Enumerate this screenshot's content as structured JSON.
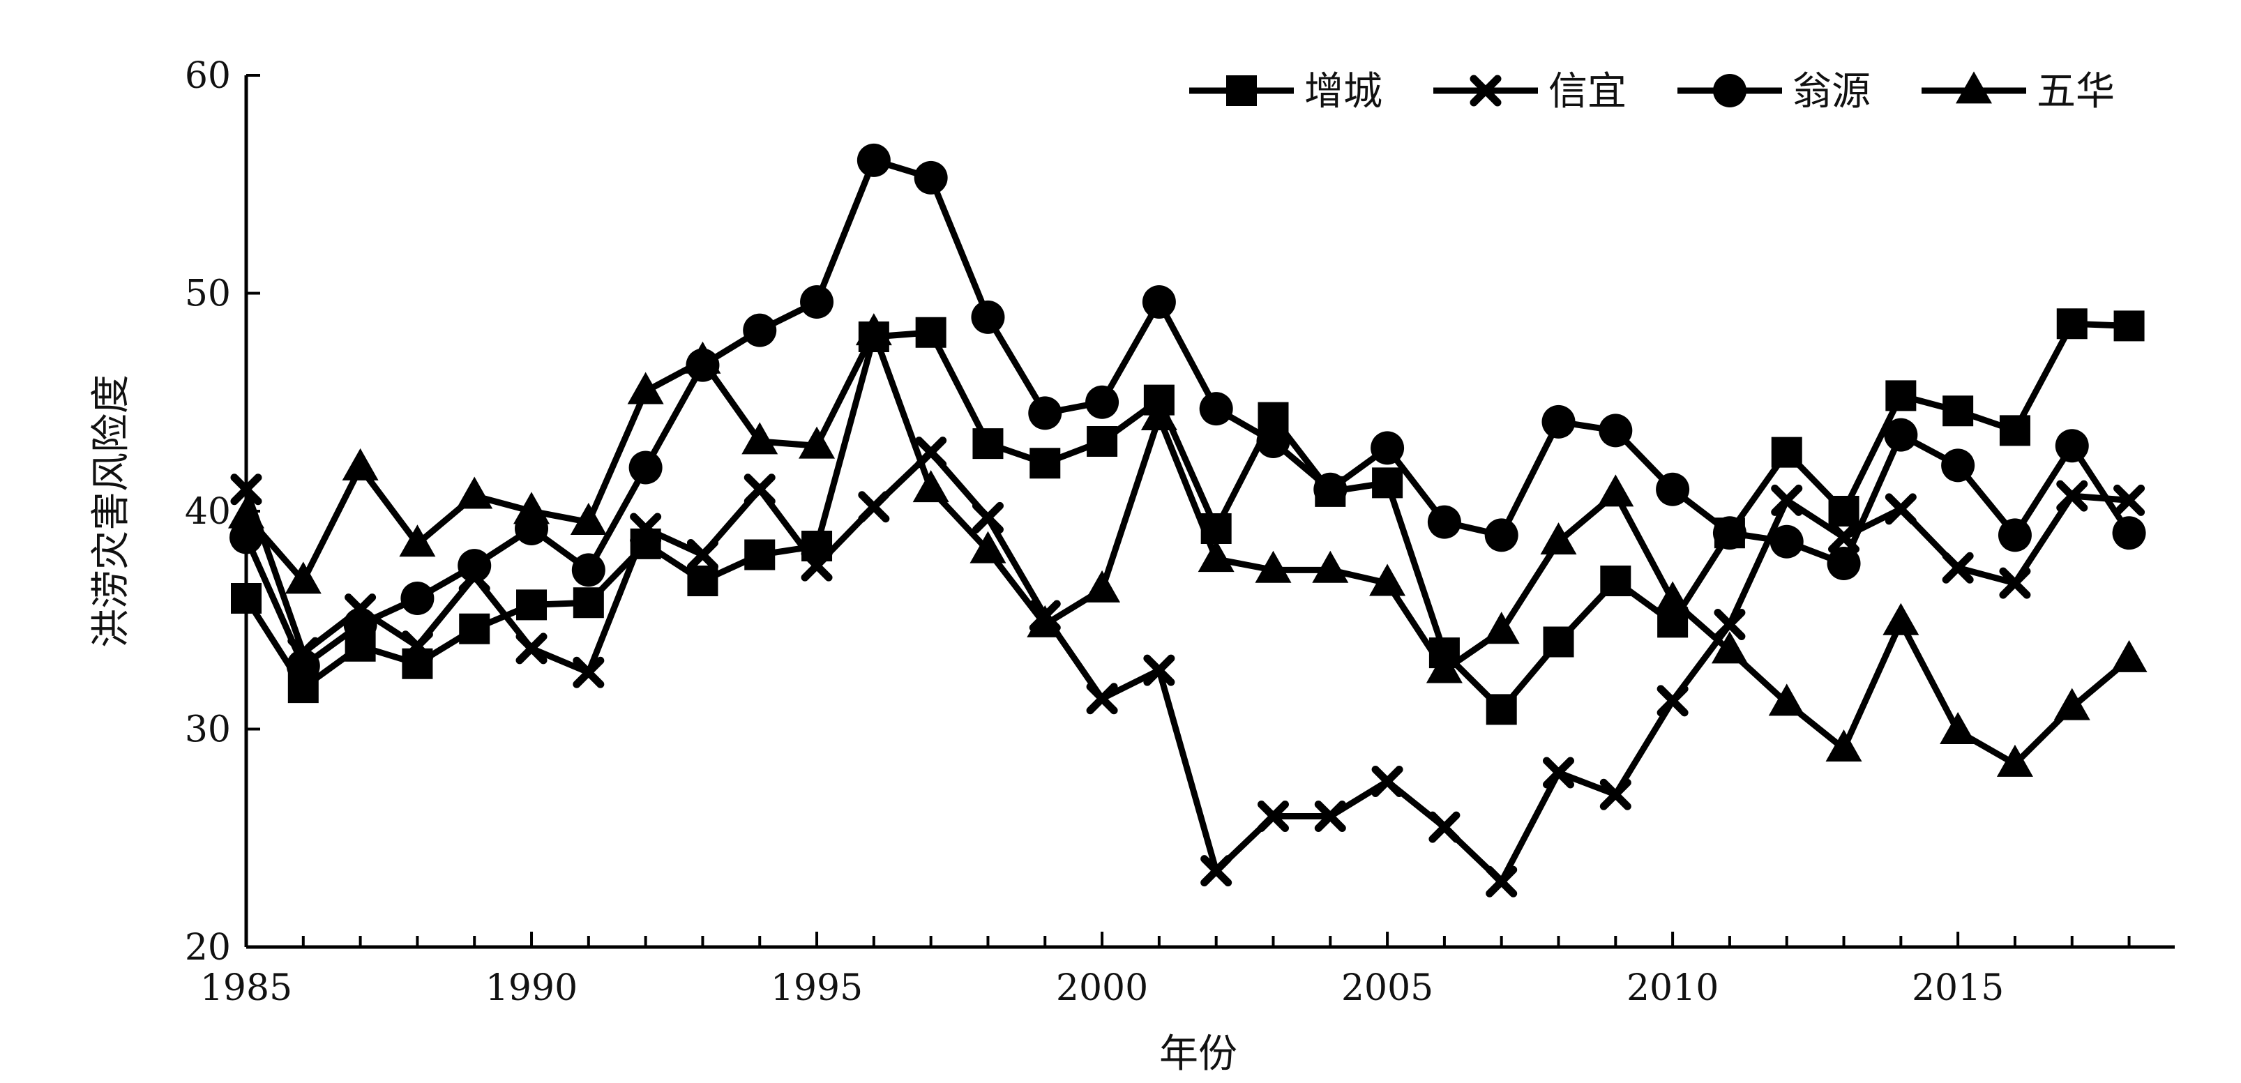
{
  "chart_data": {
    "type": "line",
    "title": "",
    "xlabel": "年份",
    "ylabel": "洪涝灾害风险度",
    "xlim": [
      1985,
      2018.8
    ],
    "ylim": [
      20,
      60
    ],
    "x_ticks": [
      1985,
      1990,
      1995,
      2000,
      2005,
      2010,
      2015
    ],
    "y_ticks": [
      20,
      30,
      40,
      50,
      60
    ],
    "grid": false,
    "legend_position": "top-right",
    "x": [
      1985,
      1986,
      1987,
      1988,
      1989,
      1990,
      1991,
      1992,
      1993,
      1994,
      1995,
      1996,
      1997,
      1998,
      1999,
      2000,
      2001,
      2002,
      2003,
      2004,
      2005,
      2006,
      2007,
      2008,
      2009,
      2010,
      2011,
      2012,
      2013,
      2014,
      2015,
      2016,
      2017,
      2018
    ],
    "series": [
      {
        "name": "增城",
        "marker": "square",
        "values": [
          36.0,
          31.9,
          33.8,
          33.0,
          34.6,
          35.7,
          35.8,
          38.5,
          36.8,
          38.0,
          38.4,
          48.0,
          48.2,
          43.1,
          42.2,
          43.2,
          45.1,
          39.2,
          44.3,
          40.9,
          41.3,
          33.5,
          30.9,
          34.0,
          36.8,
          34.9,
          39.0,
          42.7,
          40.0,
          45.3,
          44.6,
          43.7,
          48.6,
          48.5
        ]
      },
      {
        "name": "信宜",
        "marker": "x",
        "values": [
          41.0,
          33.5,
          35.5,
          33.8,
          37.0,
          33.7,
          32.6,
          39.2,
          38.0,
          41.0,
          37.5,
          40.2,
          42.7,
          39.7,
          35.2,
          31.4,
          32.7,
          23.5,
          26.0,
          26.0,
          27.6,
          25.5,
          23.0,
          28.0,
          27.0,
          31.3,
          34.8,
          40.5,
          38.8,
          40.1,
          37.4,
          36.7,
          40.7,
          40.5
        ]
      },
      {
        "name": "翁源",
        "marker": "circle",
        "values": [
          38.8,
          32.9,
          34.8,
          36.0,
          37.5,
          39.2,
          37.3,
          42.0,
          46.7,
          48.3,
          49.6,
          56.1,
          55.3,
          48.9,
          44.5,
          45.0,
          49.6,
          44.7,
          43.2,
          41.0,
          42.9,
          39.5,
          38.9,
          44.1,
          43.7,
          41.0,
          39.0,
          38.6,
          37.6,
          43.5,
          42.1,
          38.9,
          43.0,
          39.0
        ]
      },
      {
        "name": "五华",
        "marker": "triangle",
        "values": [
          39.8,
          36.8,
          42.0,
          38.5,
          40.7,
          40.0,
          39.5,
          45.5,
          46.9,
          43.2,
          43.0,
          48.2,
          41.0,
          38.2,
          34.8,
          36.4,
          44.3,
          37.8,
          37.3,
          37.3,
          36.7,
          32.7,
          34.5,
          38.6,
          40.8,
          35.9,
          33.6,
          31.2,
          29.1,
          34.9,
          29.9,
          28.4,
          31.0,
          33.2
        ]
      }
    ]
  },
  "colors": {
    "line": "#000000",
    "background": "#ffffff"
  }
}
